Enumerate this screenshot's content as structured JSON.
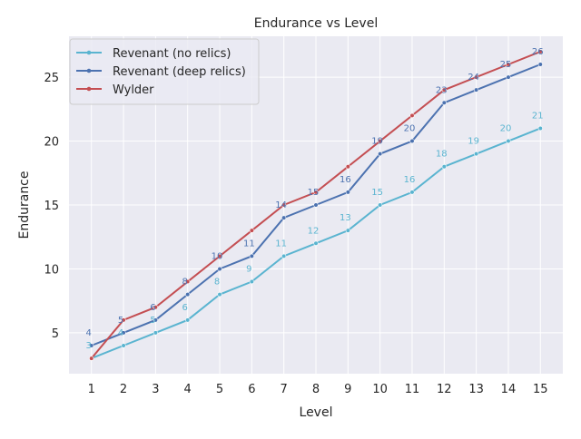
{
  "chart_data": {
    "type": "line",
    "title": "Endurance vs Level",
    "xlabel": "Level",
    "ylabel": "Endurance",
    "x": [
      1,
      2,
      3,
      4,
      5,
      6,
      7,
      8,
      9,
      10,
      11,
      12,
      13,
      14,
      15
    ],
    "xticks": [
      "1",
      "2",
      "3",
      "4",
      "5",
      "6",
      "7",
      "8",
      "9",
      "10",
      "11",
      "12",
      "13",
      "14",
      "15"
    ],
    "yticks": [
      5,
      10,
      15,
      20,
      25
    ],
    "ylim": [
      1.8,
      28.2
    ],
    "grid": true,
    "legend_position": "top-left",
    "series": [
      {
        "name": "Revenant (no relics)",
        "color": "#5ab4d0",
        "labeled": true,
        "values": [
          3,
          4,
          5,
          6,
          8,
          9,
          11,
          12,
          13,
          15,
          16,
          18,
          19,
          20,
          21
        ]
      },
      {
        "name": "Revenant (deep relics)",
        "color": "#4c72b0",
        "labeled": true,
        "values": [
          4,
          5,
          6,
          8,
          10,
          11,
          14,
          15,
          16,
          19,
          20,
          23,
          24,
          25,
          26
        ]
      },
      {
        "name": "Wylder",
        "color": "#c44e52",
        "labeled": false,
        "values": [
          3,
          6,
          7,
          9,
          11,
          13,
          15,
          16,
          18,
          20,
          22,
          24,
          25,
          26,
          27
        ]
      }
    ],
    "background": "#eaeaf2"
  }
}
